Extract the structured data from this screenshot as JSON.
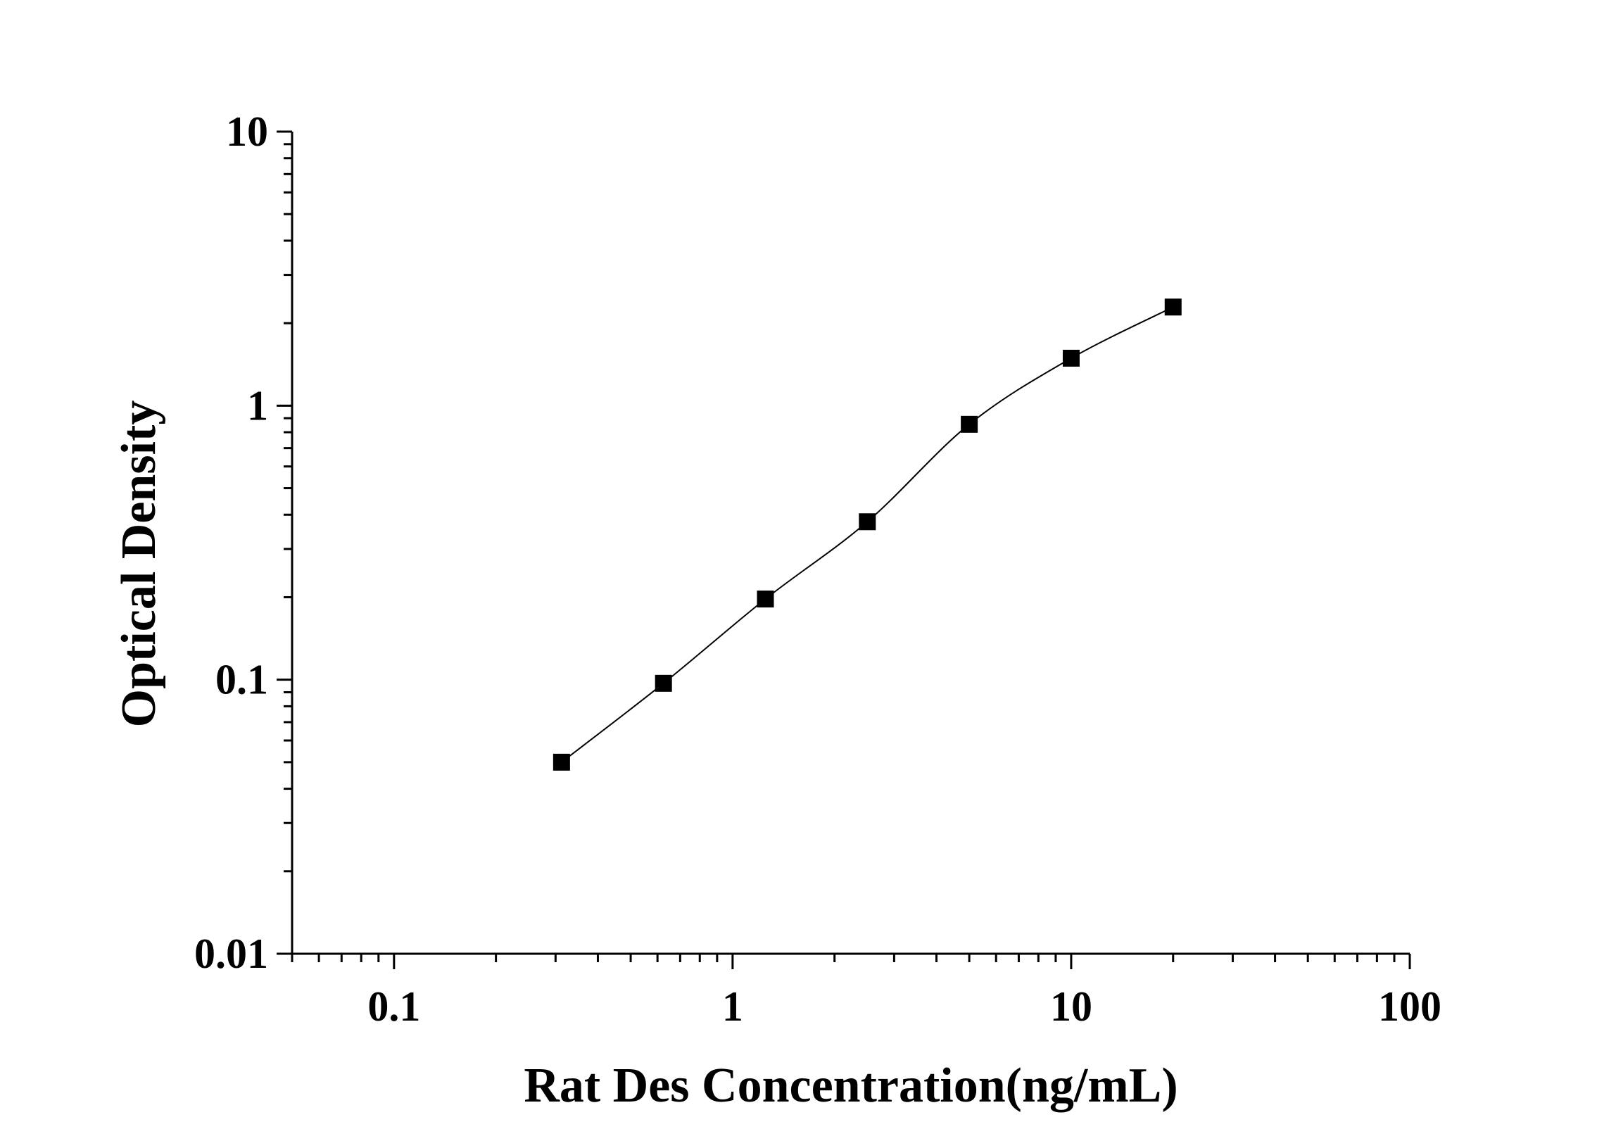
{
  "chart_data": {
    "type": "scatter",
    "title": "",
    "xlabel": "Rat Des Concentration(ng/mL)",
    "ylabel": "Optical Density",
    "x_scale": "log",
    "y_scale": "log",
    "xlim": [
      0.05,
      100
    ],
    "ylim": [
      0.01,
      10
    ],
    "x_ticks": [
      0.1,
      1,
      10,
      100
    ],
    "x_tick_labels": [
      "0.1",
      "1",
      "10",
      "100"
    ],
    "y_ticks": [
      0.01,
      0.1,
      1,
      10
    ],
    "y_tick_labels": [
      "0.01",
      "0.1",
      "1",
      "10"
    ],
    "grid": false,
    "legend": "none",
    "marker": "square",
    "line": "smooth",
    "color": "#000000",
    "series": [
      {
        "x": [
          0.3125,
          0.625,
          1.25,
          2.5,
          5,
          10,
          20
        ],
        "y": [
          0.05,
          0.097,
          0.197,
          0.377,
          0.855,
          1.49,
          2.29
        ]
      }
    ]
  }
}
